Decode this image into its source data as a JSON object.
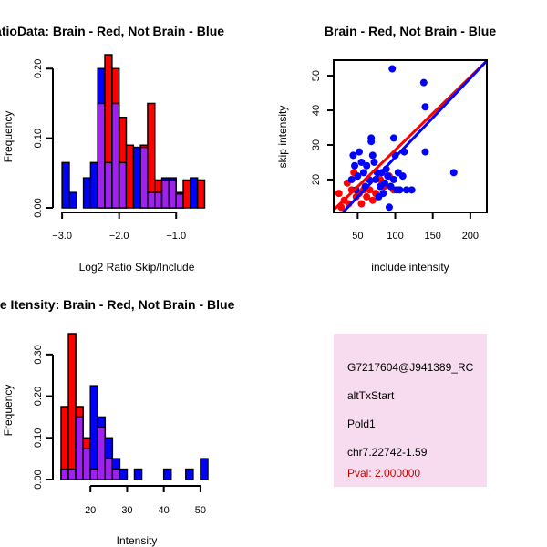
{
  "colors": {
    "red": "#ff0000",
    "blue": "#0000ff",
    "overlap": "#a020f0",
    "info_bg": "#f6dcee",
    "pval": "#cc0000"
  },
  "chart_data": [
    {
      "id": "ratio_hist",
      "type": "bar",
      "title": "RatioData: Brain - Red, Not Brain - Blue",
      "xlabel": "Log2 Ratio Skip/Include",
      "ylabel": "Frequency",
      "xlim": [
        -3.05,
        -0.3
      ],
      "ylim": [
        0,
        0.22
      ],
      "xticks": [
        {
          "value": -3.0,
          "label": "−3.0"
        },
        {
          "value": -2.0,
          "label": "−2.0"
        },
        {
          "value": -1.0,
          "label": "−1.0"
        }
      ],
      "yticks": [
        {
          "value": 0.0,
          "label": "0.00"
        },
        {
          "value": 0.1,
          "label": "0.10"
        },
        {
          "value": 0.2,
          "label": "0.20"
        }
      ],
      "bin_edges": [
        -3.0,
        -2.875,
        -2.75,
        -2.625,
        -2.5,
        -2.375,
        -2.25,
        -2.125,
        -2.0,
        -1.875,
        -1.75,
        -1.625,
        -1.5,
        -1.375,
        -1.25,
        -1.125,
        -1.0,
        -0.875,
        -0.75,
        -0.625,
        -0.5
      ],
      "series": [
        {
          "name": "Brain",
          "color": "red",
          "values": [
            0,
            0,
            0,
            0,
            0,
            0.15,
            0.22,
            0.2,
            0.13,
            0.09,
            0,
            0.09,
            0.15,
            0.04,
            0.04,
            0.04,
            0.02,
            0.04,
            0,
            0.04
          ]
        },
        {
          "name": "Not Brain",
          "color": "blue",
          "values": [
            0.065,
            0.022,
            0,
            0.043,
            0.065,
            0.2,
            0.065,
            0.15,
            0.065,
            0,
            0.087,
            0.087,
            0.022,
            0.022,
            0.043,
            0.043,
            0.022,
            0,
            0.043,
            0
          ]
        }
      ]
    },
    {
      "id": "scatter",
      "type": "scatter",
      "title": "Brain - Red, Not Brain - Blue",
      "xlabel": "include intensity",
      "ylabel": "skip intensity",
      "xlim": [
        18,
        222
      ],
      "ylim": [
        10.5,
        54.5
      ],
      "xticks": [
        {
          "value": 50,
          "label": "50"
        },
        {
          "value": 100,
          "label": "100"
        },
        {
          "value": 150,
          "label": "150"
        },
        {
          "value": 200,
          "label": "200"
        }
      ],
      "yticks": [
        {
          "value": 20,
          "label": "20"
        },
        {
          "value": 30,
          "label": "30"
        },
        {
          "value": 40,
          "label": "40"
        },
        {
          "value": 50,
          "label": "50"
        }
      ],
      "series": [
        {
          "name": "Brain",
          "color": "red",
          "points": [
            [
              25,
              16
            ],
            [
              28,
              12
            ],
            [
              32,
              14
            ],
            [
              36,
              19
            ],
            [
              38,
              13
            ],
            [
              42,
              17
            ],
            [
              45,
              22
            ],
            [
              48,
              15
            ],
            [
              52,
              16
            ],
            [
              55,
              13
            ],
            [
              58,
              17
            ],
            [
              62,
              15
            ],
            [
              66,
              17
            ],
            [
              70,
              14
            ],
            [
              74,
              16
            ],
            [
              80,
              20
            ],
            [
              85,
              18
            ],
            [
              92,
              21
            ],
            [
              98,
              17
            ]
          ],
          "fit": [
            [
              18,
              11.2
            ],
            [
              222,
              54.3
            ]
          ]
        },
        {
          "name": "Not Brain",
          "color": "blue",
          "points": [
            [
              42,
              20
            ],
            [
              44,
              27
            ],
            [
              46,
              24
            ],
            [
              48,
              17
            ],
            [
              50,
              21
            ],
            [
              52,
              28
            ],
            [
              55,
              25
            ],
            [
              58,
              22
            ],
            [
              60,
              18
            ],
            [
              62,
              24
            ],
            [
              65,
              20
            ],
            [
              68,
              31
            ],
            [
              68,
              32
            ],
            [
              70,
              27
            ],
            [
              72,
              25
            ],
            [
              74,
              20
            ],
            [
              76,
              22
            ],
            [
              78,
              15
            ],
            [
              80,
              18
            ],
            [
              82,
              22
            ],
            [
              84,
              16
            ],
            [
              86,
              19
            ],
            [
              88,
              23
            ],
            [
              90,
              21
            ],
            [
              92,
              12
            ],
            [
              94,
              18
            ],
            [
              96,
              52
            ],
            [
              98,
              32
            ],
            [
              98,
              20
            ],
            [
              100,
              27
            ],
            [
              102,
              17
            ],
            [
              104,
              22
            ],
            [
              106,
              17
            ],
            [
              110,
              21
            ],
            [
              112,
              28
            ],
            [
              115,
              17
            ],
            [
              122,
              17
            ],
            [
              138,
              48
            ],
            [
              140,
              41
            ],
            [
              140,
              28
            ],
            [
              178,
              22
            ]
          ],
          "fit": [
            [
              18,
              7.7
            ],
            [
              222,
              54.3
            ]
          ]
        }
      ]
    },
    {
      "id": "intensity_hist",
      "type": "bar",
      "title": "Gene Itensity: Brain - Red, Not Brain - Blue",
      "xlabel": "Intensity",
      "ylabel": "Frequency",
      "xlim": [
        11.5,
        53.5
      ],
      "ylim": [
        0,
        0.35
      ],
      "xticks": [
        {
          "value": 20,
          "label": "20"
        },
        {
          "value": 30,
          "label": "30"
        },
        {
          "value": 40,
          "label": "40"
        },
        {
          "value": 50,
          "label": "50"
        }
      ],
      "yticks": [
        {
          "value": 0.0,
          "label": "0.00"
        },
        {
          "value": 0.1,
          "label": "0.10"
        },
        {
          "value": 0.2,
          "label": "0.20"
        },
        {
          "value": 0.3,
          "label": "0.30"
        }
      ],
      "bin_edges": [
        12,
        14,
        16,
        18,
        20,
        22,
        24,
        26,
        28,
        30,
        32,
        34,
        36,
        38,
        40,
        42,
        44,
        46,
        48,
        50,
        52
      ],
      "series": [
        {
          "name": "Brain",
          "color": "red",
          "values": [
            0.175,
            0.35,
            0.175,
            0.1,
            0.025,
            0.125,
            0.05,
            0.025,
            0,
            0,
            0,
            0,
            0,
            0,
            0,
            0,
            0,
            0,
            0,
            0
          ]
        },
        {
          "name": "Not Brain",
          "color": "blue",
          "values": [
            0.025,
            0.025,
            0.15,
            0.075,
            0.225,
            0.15,
            0.1,
            0.05,
            0.025,
            0,
            0.025,
            0,
            0,
            0,
            0.025,
            0,
            0,
            0.025,
            0,
            0.05
          ]
        }
      ]
    }
  ],
  "info": {
    "probe_id": "G7217604@J941389_RC",
    "event_type": "altTxStart",
    "gene": "Pold1",
    "location": "chr7.22742-1.59",
    "pval": "Pval: 2.000000"
  }
}
